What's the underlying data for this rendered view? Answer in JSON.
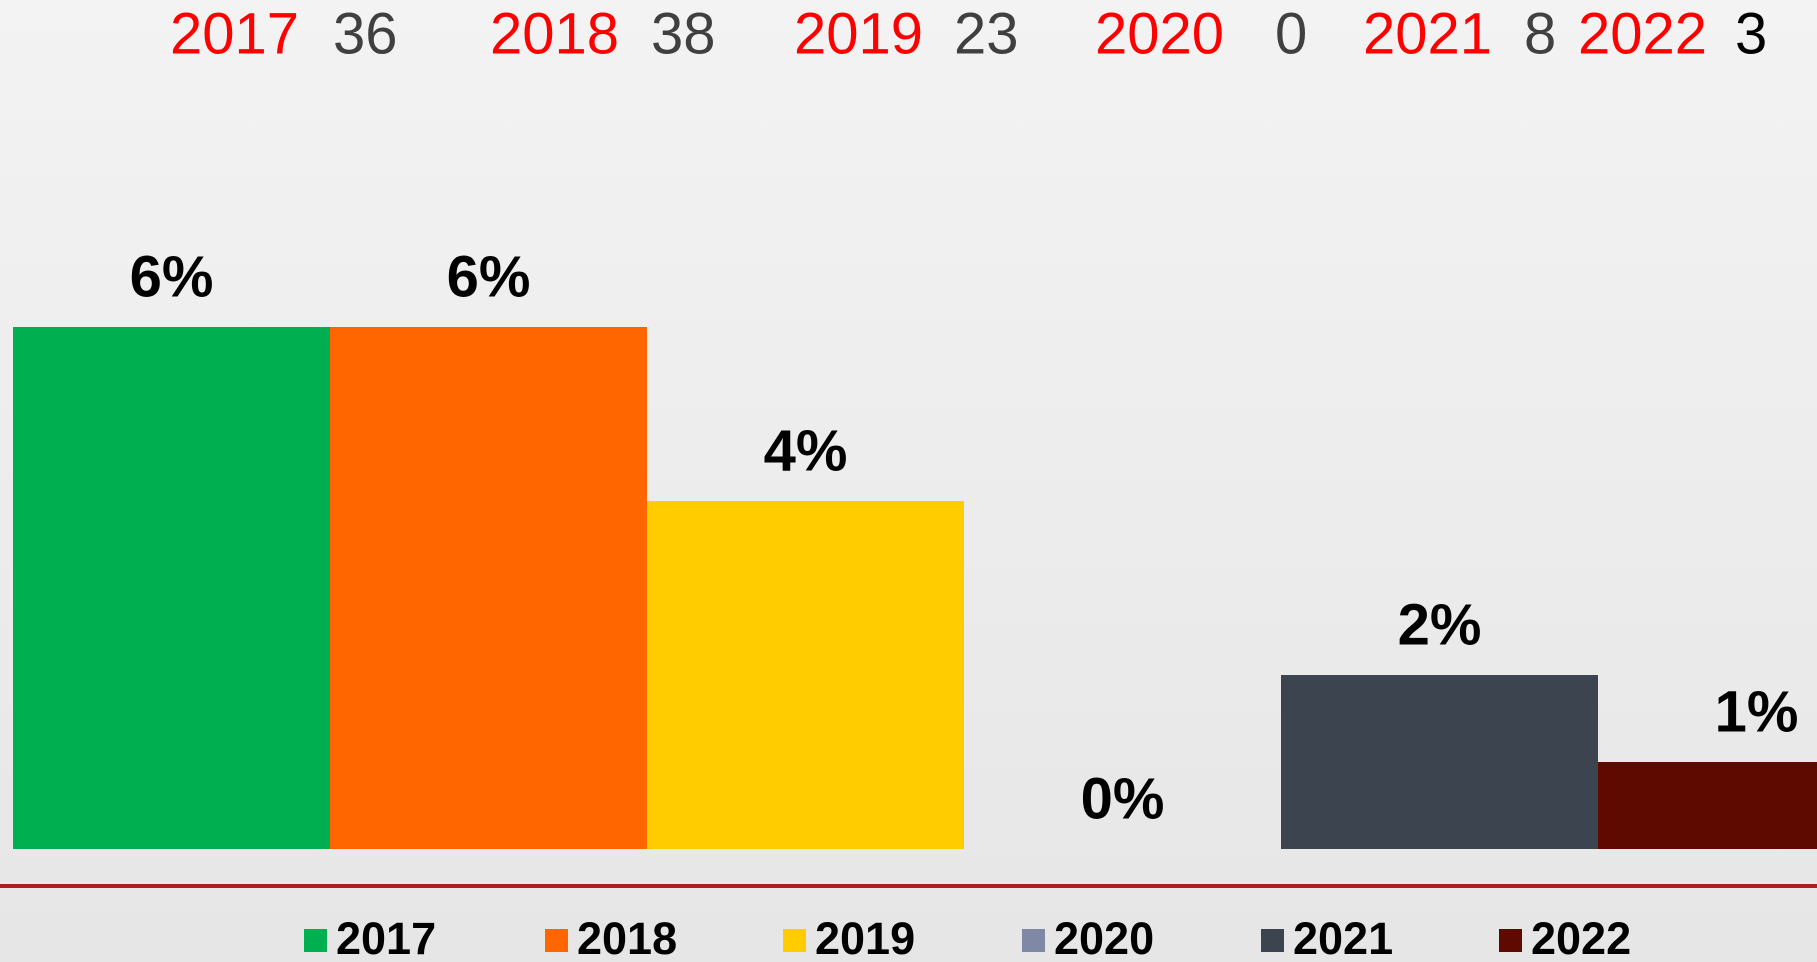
{
  "chart_data": {
    "type": "bar",
    "annotations": [
      {
        "year": "2017",
        "count": 36
      },
      {
        "year": "2018",
        "count": 38
      },
      {
        "year": "2019",
        "count": 23
      },
      {
        "year": "2020",
        "count": 0
      },
      {
        "year": "2021",
        "count": 8
      },
      {
        "year": "2022",
        "count": 3
      }
    ],
    "series": [
      {
        "name": "2017",
        "color": "#00b050",
        "values": [
          6
        ],
        "value_labels": [
          "6%"
        ]
      },
      {
        "name": "2018",
        "color": "#ff6600",
        "values": [
          6
        ],
        "value_labels": [
          "6%"
        ]
      },
      {
        "name": "2019",
        "color": "#ffcc00",
        "values": [
          4
        ],
        "value_labels": [
          "4%"
        ]
      },
      {
        "name": "2020",
        "color": "#7f88a4",
        "values": [
          0
        ],
        "value_labels": [
          "0%"
        ]
      },
      {
        "name": "2021",
        "color": "#3c4450",
        "values": [
          2
        ],
        "value_labels": [
          "2%"
        ]
      },
      {
        "name": "2022",
        "color": "#5e0a00",
        "values": [
          1
        ],
        "value_labels": [
          "1%"
        ]
      }
    ],
    "legend": "bottom"
  }
}
